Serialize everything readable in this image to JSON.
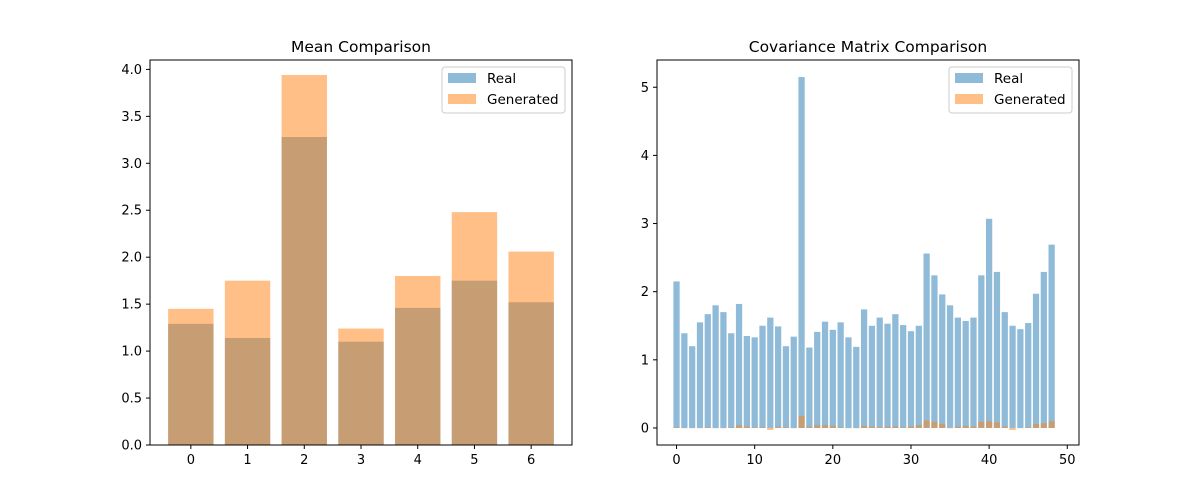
{
  "chart_data": [
    {
      "type": "bar",
      "title": "Mean Comparison",
      "xlabel": "",
      "ylabel": "",
      "categories": [
        "0",
        "1",
        "2",
        "3",
        "4",
        "5",
        "6"
      ],
      "xticks": [
        "0",
        "1",
        "2",
        "3",
        "4",
        "5",
        "6"
      ],
      "yticks": [
        "0.0",
        "0.5",
        "1.0",
        "1.5",
        "2.0",
        "2.5",
        "3.0",
        "3.5",
        "4.0"
      ],
      "ylim": [
        0,
        4.1
      ],
      "legend_position": "top-right",
      "series": [
        {
          "name": "Real",
          "color": "#1f77b4",
          "alpha": 0.5,
          "values": [
            1.29,
            1.14,
            3.28,
            1.1,
            1.46,
            1.75,
            1.52
          ]
        },
        {
          "name": "Generated",
          "color": "#ff7f0e",
          "alpha": 0.5,
          "values": [
            1.45,
            1.75,
            3.94,
            1.24,
            1.8,
            2.48,
            2.06
          ]
        }
      ]
    },
    {
      "type": "bar",
      "title": "Covariance Matrix Comparison",
      "xlabel": "",
      "ylabel": "",
      "xticks": [
        "0",
        "10",
        "20",
        "30",
        "40",
        "50"
      ],
      "yticks": [
        "0",
        "1",
        "2",
        "3",
        "4",
        "5"
      ],
      "xlim": [
        -2.5,
        51.5
      ],
      "ylim": [
        -0.25,
        5.4
      ],
      "legend_position": "top-right",
      "series": [
        {
          "name": "Real",
          "color": "#1f77b4",
          "alpha": 0.5,
          "values": [
            2.15,
            1.39,
            1.2,
            1.55,
            1.67,
            1.8,
            1.7,
            1.39,
            1.82,
            1.35,
            1.33,
            1.5,
            1.62,
            1.49,
            1.2,
            1.34,
            5.15,
            1.18,
            1.41,
            1.56,
            1.44,
            1.55,
            1.33,
            1.19,
            1.74,
            1.5,
            1.62,
            1.53,
            1.67,
            1.51,
            1.42,
            1.5,
            2.56,
            2.24,
            1.96,
            1.8,
            1.62,
            1.57,
            1.62,
            2.24,
            3.07,
            2.29,
            1.7,
            1.5,
            1.45,
            1.54,
            1.97,
            2.29,
            2.69
          ]
        },
        {
          "name": "Generated",
          "color": "#ff7f0e",
          "alpha": 0.5,
          "values": [
            0.01,
            0.0,
            0.0,
            0.0,
            0.01,
            0.0,
            0.0,
            0.01,
            0.04,
            0.02,
            0.01,
            0.01,
            -0.03,
            0.02,
            0.01,
            0.0,
            0.18,
            0.02,
            0.04,
            0.04,
            0.03,
            0.01,
            0.0,
            0.0,
            0.03,
            0.02,
            0.01,
            0.02,
            0.02,
            0.01,
            0.02,
            0.04,
            0.11,
            0.09,
            0.06,
            0.0,
            0.02,
            0.03,
            0.02,
            0.09,
            0.1,
            0.08,
            0.02,
            -0.03,
            0.0,
            0.01,
            0.06,
            0.07,
            0.1
          ]
        }
      ]
    }
  ]
}
